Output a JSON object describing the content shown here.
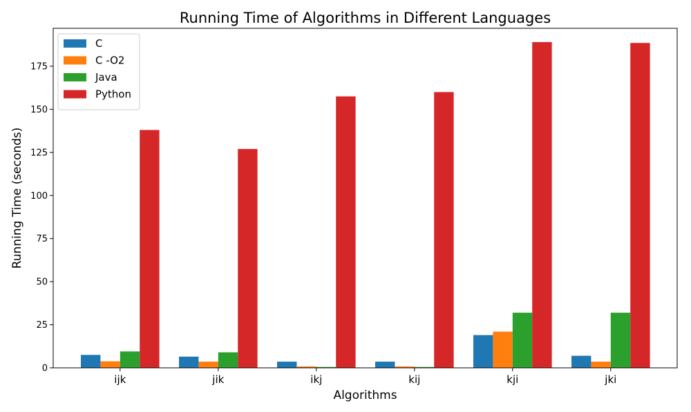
{
  "chart_data": {
    "type": "bar",
    "title": "Running Time of Algorithms in Different Languages",
    "xlabel": "Algorithms",
    "ylabel": "Running Time (seconds)",
    "categories": [
      "ijk",
      "jik",
      "ikj",
      "kij",
      "kji",
      "jki"
    ],
    "ylim": [
      0,
      197
    ],
    "yticks": [
      0,
      25,
      50,
      75,
      100,
      125,
      150,
      175
    ],
    "grid": false,
    "legend_position": "top-left",
    "series": [
      {
        "name": "C",
        "color": "#1f77b4",
        "values": [
          7.5,
          6.5,
          3.6,
          3.6,
          19.0,
          7.0
        ]
      },
      {
        "name": "C -O2",
        "color": "#ff7f0e",
        "values": [
          3.8,
          3.6,
          0.8,
          0.8,
          21.0,
          3.6
        ]
      },
      {
        "name": "Java",
        "color": "#2ca02c",
        "values": [
          9.5,
          9.0,
          0.5,
          0.5,
          32.0,
          32.0
        ]
      },
      {
        "name": "Python",
        "color": "#d62728",
        "values": [
          138.0,
          127.0,
          157.5,
          160.0,
          189.0,
          188.5
        ]
      }
    ]
  }
}
